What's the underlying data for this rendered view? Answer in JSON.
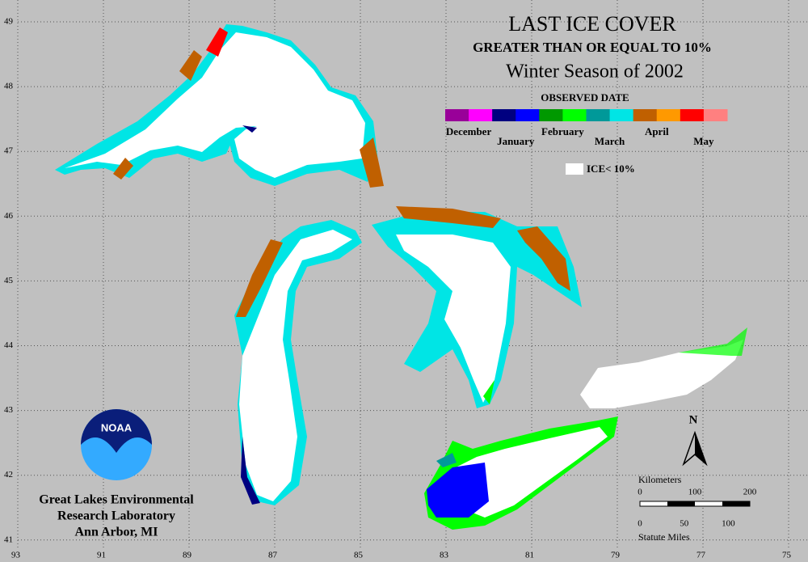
{
  "title": "LAST ICE COVER",
  "subtitle": "GREATER THAN OR EQUAL TO 10%",
  "season": "Winter Season of 2002",
  "legend": {
    "title": "OBSERVED DATE",
    "months": [
      "December",
      "January",
      "February",
      "March",
      "April",
      "May"
    ],
    "colors": [
      [
        "#990099",
        "#ff00ff"
      ],
      [
        "#000080",
        "#0000ff"
      ],
      [
        "#009900",
        "#00ff00"
      ],
      [
        "#009999",
        "#00e5e5"
      ],
      [
        "#c06000",
        "#ff9900"
      ],
      [
        "#ff0000",
        "#ff8080"
      ]
    ],
    "white_label": "ICE< 10%"
  },
  "lat_labels": [
    "49",
    "48",
    "47",
    "46",
    "45",
    "44",
    "43",
    "42",
    "41"
  ],
  "lon_labels": [
    "93",
    "91",
    "89",
    "87",
    "85",
    "83",
    "81",
    "79",
    "77",
    "75"
  ],
  "north": "N",
  "scale": {
    "km_title": "Kilometers",
    "km_ticks": [
      "0",
      "100",
      "200"
    ],
    "mi_ticks": [
      "0",
      "50",
      "100"
    ],
    "mi_title": "Statute Miles"
  },
  "logo": "NOAA",
  "org": [
    "Great Lakes Environmental",
    "Research Laboratory",
    "Ann Arbor, MI"
  ]
}
